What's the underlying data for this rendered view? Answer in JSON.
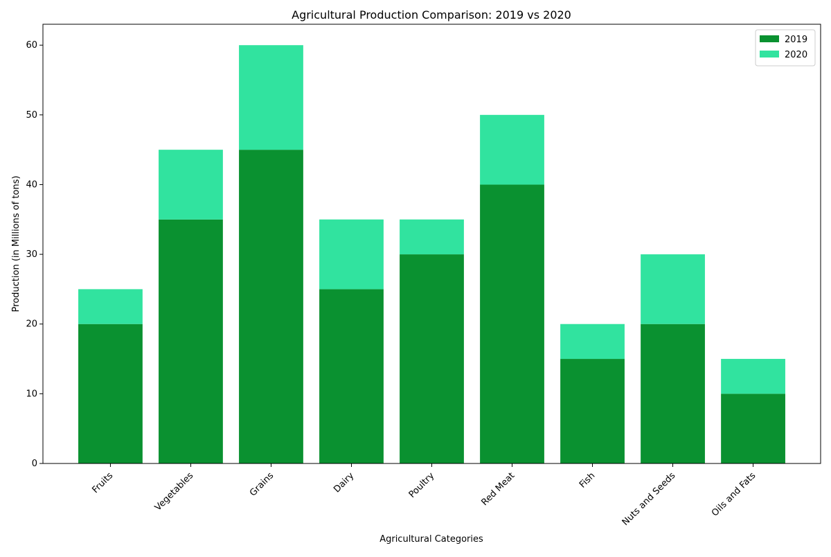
{
  "chart_data": {
    "type": "stacked_bar",
    "title": "Agricultural Production Comparison: 2019 vs 2020",
    "x_label": "Agricultural Categories",
    "y_label": "Production (in Millions of tons)",
    "categories": [
      "Fruits",
      "Vegetables",
      "Grains",
      "Dairy",
      "Poultry",
      "Red Meat",
      "Fish",
      "Nuts and Seeds",
      "Oils and Fats"
    ],
    "series": [
      {
        "name": "2019",
        "color": "#0a9130",
        "values": [
          20,
          35,
          45,
          25,
          30,
          40,
          15,
          20,
          10
        ]
      },
      {
        "name": "2020",
        "color": "#31e39f",
        "values": [
          5,
          10,
          15,
          10,
          5,
          10,
          5,
          10,
          5
        ]
      }
    ],
    "ylim": [
      0,
      63
    ],
    "yticks": [
      0,
      10,
      20,
      30,
      40,
      50,
      60
    ],
    "legend": "upper right",
    "grid": false
  }
}
